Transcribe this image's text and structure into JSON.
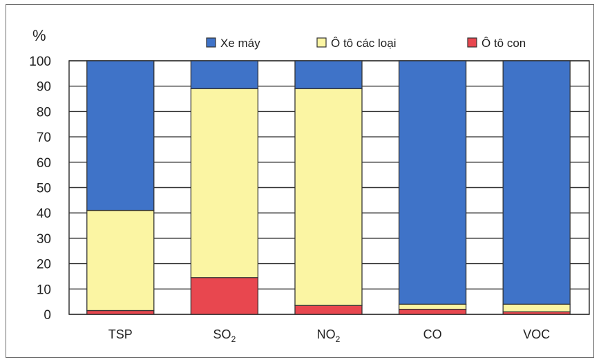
{
  "chart_data": {
    "type": "bar",
    "stacked": true,
    "ylabel": "%",
    "ylim": [
      0,
      100
    ],
    "yticks": [
      0,
      10,
      20,
      30,
      40,
      50,
      60,
      70,
      80,
      90,
      100
    ],
    "grid": true,
    "legend_position": "top",
    "categories": [
      {
        "main": "TSP",
        "sub": ""
      },
      {
        "main": "SO",
        "sub": "2"
      },
      {
        "main": "NO",
        "sub": "2"
      },
      {
        "main": "CO",
        "sub": ""
      },
      {
        "main": "VOC",
        "sub": ""
      }
    ],
    "series": [
      {
        "name": "Ô tô con",
        "color": "#e8474f",
        "values": [
          1.5,
          14.5,
          3.5,
          2,
          1
        ]
      },
      {
        "name": "Ô tô các loại",
        "color": "#fbf5a3",
        "values": [
          39.5,
          74.5,
          85.5,
          2,
          3
        ]
      },
      {
        "name": "Xe máy",
        "color": "#3f73c8",
        "values": [
          59,
          11,
          11,
          96,
          96
        ]
      }
    ],
    "legend_order": [
      "Xe máy",
      "Ô tô các loại",
      "Ô tô con"
    ]
  }
}
